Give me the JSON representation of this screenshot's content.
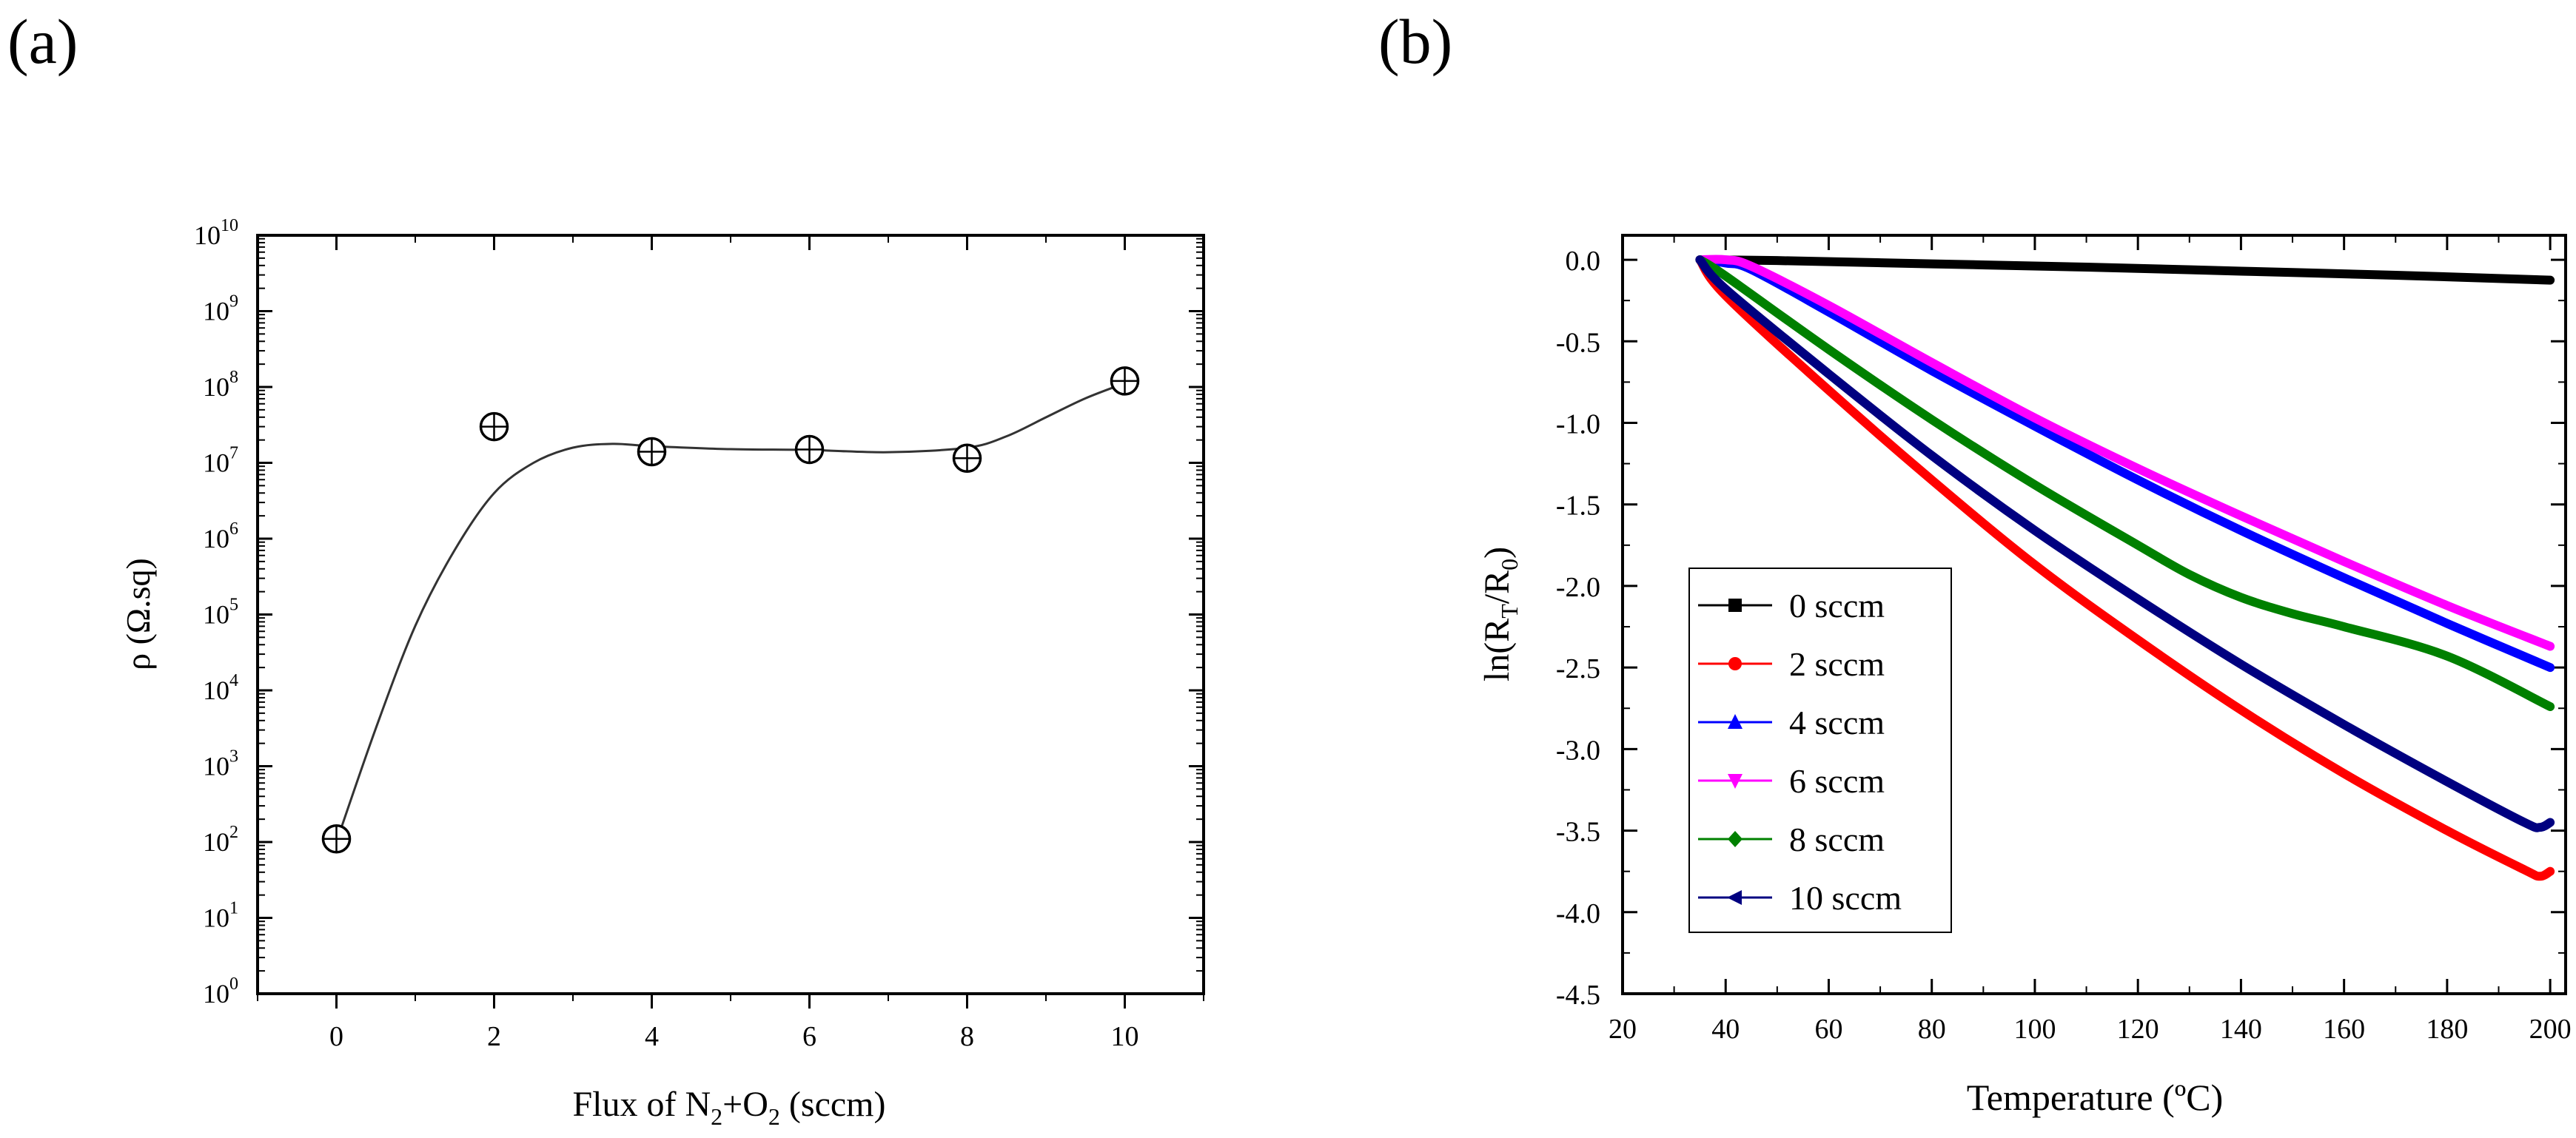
{
  "panels": {
    "a_label": "(a)",
    "b_label": "(b)"
  },
  "chart_data": [
    {
      "type": "scatter",
      "title": "",
      "xlabel_parts": [
        "Flux of N",
        "2",
        "+O",
        "2",
        " (sccm)"
      ],
      "ylabel": "ρ  (Ω.sq)",
      "x_ticks": [
        "0",
        "2",
        "4",
        "6",
        "8",
        "10"
      ],
      "y_ticks": [
        {
          "base": "10",
          "exp": "0"
        },
        {
          "base": "10",
          "exp": "1"
        },
        {
          "base": "10",
          "exp": "2"
        },
        {
          "base": "10",
          "exp": "3"
        },
        {
          "base": "10",
          "exp": "4"
        },
        {
          "base": "10",
          "exp": "5"
        },
        {
          "base": "10",
          "exp": "6"
        },
        {
          "base": "10",
          "exp": "7"
        },
        {
          "base": "10",
          "exp": "8"
        },
        {
          "base": "10",
          "exp": "9"
        },
        {
          "base": "10",
          "exp": "10"
        }
      ],
      "yscale": "log",
      "xlim": [
        -1,
        11
      ],
      "ylim_log10": [
        0,
        10
      ],
      "points": {
        "x": [
          0,
          2,
          4,
          6,
          8,
          10
        ],
        "y": [
          110,
          30000000,
          14000000,
          15000000,
          11500000,
          120000000
        ]
      },
      "fit_curve": {
        "x": [
          0,
          0.5,
          1,
          1.5,
          2,
          2.5,
          3,
          3.5,
          4,
          5,
          6,
          7,
          8,
          8.5,
          9,
          9.5,
          10
        ],
        "log10y": [
          2.0,
          3.5,
          4.85,
          5.85,
          6.6,
          7.0,
          7.2,
          7.25,
          7.22,
          7.18,
          7.17,
          7.14,
          7.2,
          7.35,
          7.6,
          7.85,
          8.05
        ]
      },
      "colors": {
        "marker": "#000000",
        "curve": "#333333"
      }
    },
    {
      "type": "line",
      "title": "",
      "xlabel": "Temperature (ºC)",
      "ylabel_parts": [
        "ln(R",
        "T",
        "/R",
        "0",
        ")"
      ],
      "x_ticks": [
        "20",
        "40",
        "60",
        "80",
        "100",
        "120",
        "140",
        "160",
        "180",
        "200"
      ],
      "y_ticks": [
        "0.0",
        "-0.5",
        "-1.0",
        "-1.5",
        "-2.0",
        "-2.5",
        "-3.0",
        "-3.5",
        "-4.0",
        "-4.5"
      ],
      "xlim": [
        20,
        203
      ],
      "ylim": [
        -4.5,
        0.15
      ],
      "legend_position": "lower-left",
      "series": [
        {
          "name": "0 sccm",
          "color": "#000000",
          "marker": "square",
          "x": [
            35,
            50,
            80,
            110,
            140,
            170,
            200
          ],
          "y": [
            0,
            -0.005,
            -0.025,
            -0.045,
            -0.07,
            -0.095,
            -0.125
          ]
        },
        {
          "name": "2 sccm",
          "color": "#ff0000",
          "marker": "circle",
          "x": [
            35,
            40,
            60,
            80,
            100,
            120,
            140,
            160,
            180,
            195,
            198,
            200
          ],
          "y": [
            0,
            -0.22,
            -0.8,
            -1.35,
            -1.87,
            -2.33,
            -2.76,
            -3.15,
            -3.5,
            -3.74,
            -3.78,
            -3.75
          ]
        },
        {
          "name": "4 sccm",
          "color": "#0000ff",
          "marker": "triangle-up",
          "x": [
            35,
            40,
            45,
            60,
            80,
            100,
            120,
            140,
            160,
            180,
            200
          ],
          "y": [
            0,
            -0.02,
            -0.06,
            -0.32,
            -0.68,
            -1.02,
            -1.35,
            -1.66,
            -1.95,
            -2.23,
            -2.5
          ]
        },
        {
          "name": "6 sccm",
          "color": "#ff00ff",
          "marker": "triangle-down",
          "x": [
            35,
            40,
            45,
            60,
            80,
            100,
            120,
            140,
            160,
            180,
            200
          ],
          "y": [
            0,
            0,
            -0.04,
            -0.28,
            -0.63,
            -0.97,
            -1.28,
            -1.57,
            -1.85,
            -2.12,
            -2.37
          ]
        },
        {
          "name": "8 sccm",
          "color": "#008000",
          "marker": "diamond",
          "x": [
            35,
            40,
            60,
            80,
            100,
            120,
            130,
            140,
            150,
            160,
            180,
            200
          ],
          "y": [
            0,
            -0.1,
            -0.55,
            -0.98,
            -1.38,
            -1.75,
            -1.93,
            -2.07,
            -2.17,
            -2.25,
            -2.43,
            -2.74
          ]
        },
        {
          "name": "10 sccm",
          "color": "#000080",
          "marker": "triangle-left",
          "x": [
            35,
            40,
            60,
            80,
            100,
            120,
            140,
            160,
            180,
            195,
            198,
            200
          ],
          "y": [
            0,
            -0.18,
            -0.7,
            -1.2,
            -1.66,
            -2.08,
            -2.48,
            -2.85,
            -3.2,
            -3.45,
            -3.48,
            -3.45
          ]
        }
      ]
    }
  ]
}
